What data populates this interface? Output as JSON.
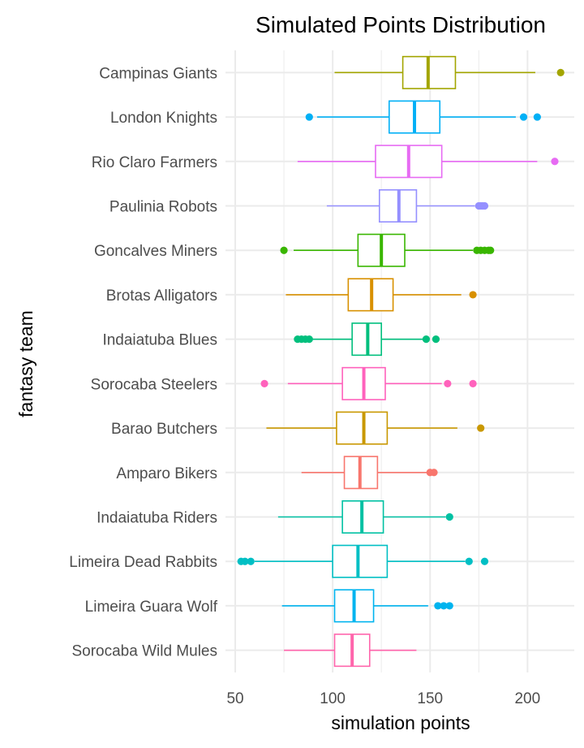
{
  "chart_data": {
    "type": "boxplot",
    "orientation": "horizontal",
    "title": "Simulated Points Distribution",
    "xlabel": "simulation points",
    "ylabel": "fantasy team",
    "xlim": [
      45,
      224
    ],
    "xticks": [
      50,
      100,
      150,
      200
    ],
    "grid": true,
    "legend": "none",
    "series": [
      {
        "name": "Campinas Giants",
        "color": "#A3A500",
        "whisker_low": 101,
        "q1": 136,
        "median": 149,
        "q3": 163,
        "whisker_high": 204,
        "outliers": [
          217
        ]
      },
      {
        "name": "London Knights",
        "color": "#00B0F6",
        "whisker_low": 92,
        "q1": 129,
        "median": 142,
        "q3": 155,
        "whisker_high": 194,
        "outliers": [
          88,
          198,
          205
        ]
      },
      {
        "name": "Rio Claro Farmers",
        "color": "#E76BF3",
        "whisker_low": 82,
        "q1": 122,
        "median": 139,
        "q3": 156,
        "whisker_high": 205,
        "outliers": [
          214
        ]
      },
      {
        "name": "Paulinia Robots",
        "color": "#9590FF",
        "whisker_low": 97,
        "q1": 124,
        "median": 134,
        "q3": 143,
        "whisker_high": 173,
        "outliers": [
          175,
          176,
          177,
          178
        ]
      },
      {
        "name": "Goncalves Miners",
        "color": "#39B600",
        "whisker_low": 80,
        "q1": 113,
        "median": 125,
        "q3": 137,
        "whisker_high": 172,
        "outliers": [
          75,
          174,
          176,
          178,
          180,
          181
        ]
      },
      {
        "name": "Brotas Alligators",
        "color": "#D89000",
        "whisker_low": 76,
        "q1": 108,
        "median": 120,
        "q3": 131,
        "whisker_high": 166,
        "outliers": [
          172
        ]
      },
      {
        "name": "Indaiatuba Blues",
        "color": "#00BF7D",
        "whisker_low": 88,
        "q1": 110,
        "median": 118,
        "q3": 125,
        "whisker_high": 147,
        "outliers": [
          82,
          84,
          86,
          88,
          148,
          153
        ]
      },
      {
        "name": "Sorocaba Steelers",
        "color": "#FF62BC",
        "whisker_low": 77,
        "q1": 105,
        "median": 116,
        "q3": 127,
        "whisker_high": 156,
        "outliers": [
          65,
          159,
          172
        ]
      },
      {
        "name": "Barao Butchers",
        "color": "#C99800",
        "whisker_low": 66,
        "q1": 102,
        "median": 116,
        "q3": 128,
        "whisker_high": 164,
        "outliers": [
          176
        ]
      },
      {
        "name": "Amparo Bikers",
        "color": "#F8766D",
        "whisker_low": 84,
        "q1": 106,
        "median": 114,
        "q3": 123,
        "whisker_high": 149,
        "outliers": [
          150,
          152
        ]
      },
      {
        "name": "Indaiatuba Riders",
        "color": "#00C1A3",
        "whisker_low": 72,
        "q1": 105,
        "median": 115,
        "q3": 126,
        "whisker_high": 158,
        "outliers": [
          160
        ]
      },
      {
        "name": "Limeira Dead Rabbits",
        "color": "#00BFC4",
        "whisker_low": 60,
        "q1": 100,
        "median": 113,
        "q3": 128,
        "whisker_high": 168,
        "outliers": [
          53,
          55,
          58,
          170,
          178
        ]
      },
      {
        "name": "Limeira Guara Wolf",
        "color": "#00B4EF",
        "whisker_low": 74,
        "q1": 101,
        "median": 111,
        "q3": 121,
        "whisker_high": 149,
        "outliers": [
          154,
          157,
          160
        ]
      },
      {
        "name": "Sorocaba Wild Mules",
        "color": "#FF65AC",
        "whisker_low": 75,
        "q1": 101,
        "median": 110,
        "q3": 119,
        "whisker_high": 143,
        "outliers": []
      }
    ]
  }
}
